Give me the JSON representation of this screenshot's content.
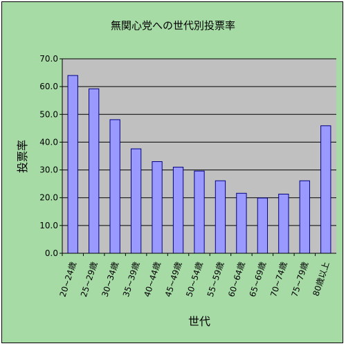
{
  "chart_data": {
    "type": "bar",
    "title": "無関心党への世代別投票率",
    "xlabel": "世代",
    "ylabel": "投票率",
    "categories": [
      "20~24歳",
      "25~29歳",
      "30~34歳",
      "35~39歳",
      "40~44歳",
      "45~49歳",
      "50~54歳",
      "55~59歳",
      "60~64歳",
      "65~69歳",
      "70~74歳",
      "75~79歳",
      "80歳以上"
    ],
    "values": [
      64.0,
      59.2,
      48.1,
      37.6,
      33.0,
      31.0,
      29.6,
      26.1,
      21.6,
      19.9,
      21.3,
      26.1,
      45.9
    ],
    "ylim": [
      0,
      70
    ],
    "yticks": [
      "0.0",
      "10.0",
      "20.0",
      "30.0",
      "40.0",
      "50.0",
      "60.0",
      "70.0"
    ],
    "grid": true,
    "colors": {
      "background": "#a6dba6",
      "plot_area": "#c0c0c0",
      "bar_fill": "#9999ff",
      "bar_stroke": "#000080",
      "grid": "#000000"
    }
  }
}
